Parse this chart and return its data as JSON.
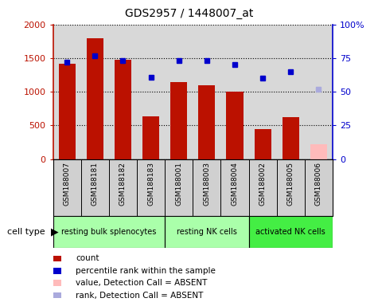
{
  "title": "GDS2957 / 1448007_at",
  "samples": [
    "GSM188007",
    "GSM188181",
    "GSM188182",
    "GSM188183",
    "GSM188001",
    "GSM188003",
    "GSM188004",
    "GSM188002",
    "GSM188005",
    "GSM188006"
  ],
  "counts": [
    1420,
    1800,
    1470,
    640,
    1150,
    1100,
    1000,
    450,
    620,
    220
  ],
  "percentile_ranks": [
    72,
    77,
    73,
    61,
    73,
    73,
    70,
    60,
    65,
    52
  ],
  "absent_flags": [
    false,
    false,
    false,
    false,
    false,
    false,
    false,
    false,
    false,
    true
  ],
  "group_boundaries": [
    {
      "start": 0,
      "end": 3,
      "label": "resting bulk splenocytes",
      "color": "#aaffaa"
    },
    {
      "start": 4,
      "end": 6,
      "label": "resting NK cells",
      "color": "#aaffaa"
    },
    {
      "start": 7,
      "end": 9,
      "label": "activated NK cells",
      "color": "#44ee44"
    }
  ],
  "bar_color_present": "#bb1100",
  "bar_color_absent": "#ffbbbb",
  "dot_color_present": "#0000cc",
  "dot_color_absent": "#aaaadd",
  "ylim_left": [
    0,
    2000
  ],
  "ylim_right": [
    0,
    100
  ],
  "yticks_left": [
    0,
    500,
    1000,
    1500,
    2000
  ],
  "yticks_right": [
    0,
    25,
    50,
    75,
    100
  ],
  "yticklabels_right": [
    "0",
    "25",
    "50",
    "75",
    "100%"
  ],
  "bg_color": "#d8d8d8",
  "sample_bg": "#d0d0d0",
  "legend_items": [
    {
      "label": "count",
      "color": "#bb1100"
    },
    {
      "label": "percentile rank within the sample",
      "color": "#0000cc"
    },
    {
      "label": "value, Detection Call = ABSENT",
      "color": "#ffbbbb"
    },
    {
      "label": "rank, Detection Call = ABSENT",
      "color": "#aaaadd"
    }
  ]
}
